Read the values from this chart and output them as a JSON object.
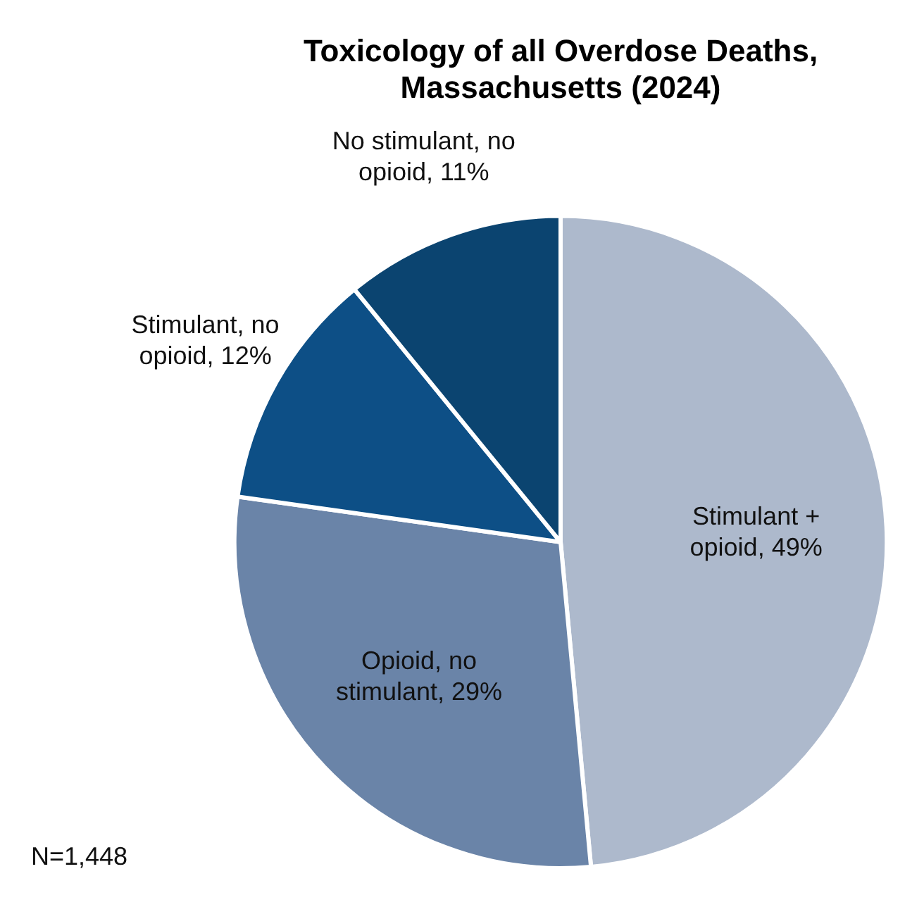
{
  "chart_data": {
    "type": "pie",
    "title": "Toxicology of all Overdose Deaths, Massachusetts (2024)",
    "categories": [
      "Stimulant + opioid",
      "Opioid, no stimulant",
      "Stimulant, no opioid",
      "No stimulant, no opioid"
    ],
    "values": [
      49,
      29,
      12,
      11
    ],
    "value_labels": [
      "49%",
      "29%",
      "12%",
      "11%"
    ],
    "colors": [
      "#adb9cc",
      "#6a84a8",
      "#0d4f86",
      "#0b4470"
    ],
    "legend": false,
    "annotations": [
      "N=1,448"
    ]
  }
}
